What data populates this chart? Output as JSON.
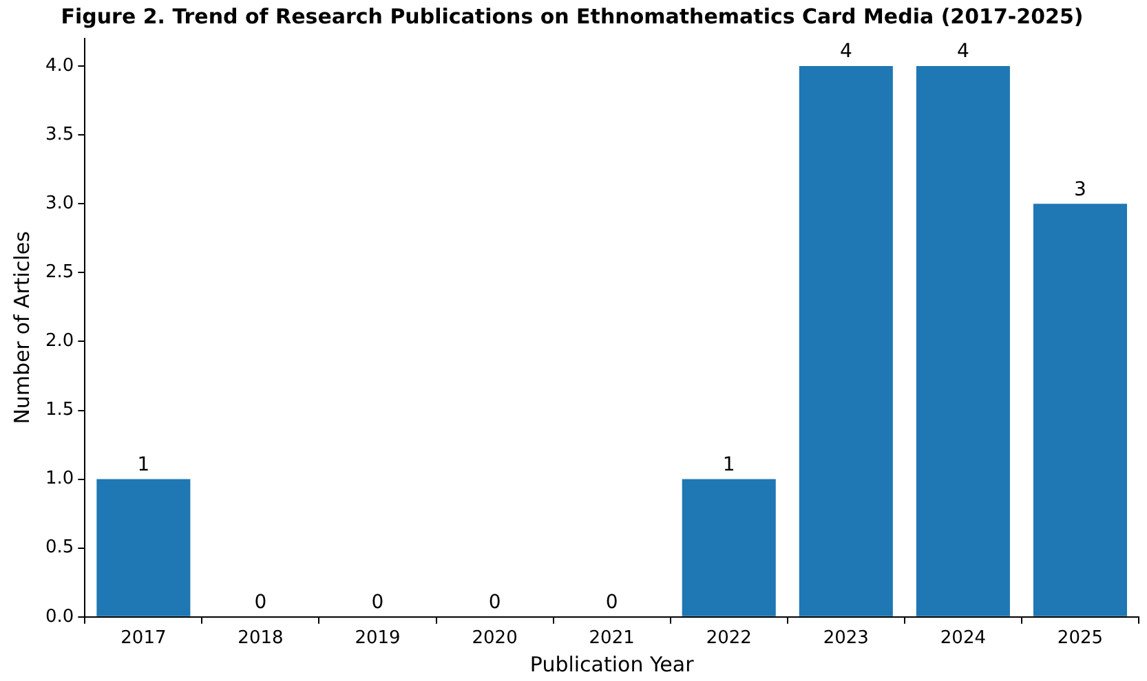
{
  "chart_data": {
    "type": "bar",
    "title": "Figure 2. Trend of Research Publications on Ethnomathematics Card Media (2017-2025)",
    "xlabel": "Publication Year",
    "ylabel": "Number of Articles",
    "categories": [
      "2017",
      "2018",
      "2019",
      "2020",
      "2021",
      "2022",
      "2023",
      "2024",
      "2025"
    ],
    "values": [
      1,
      0,
      0,
      0,
      0,
      1,
      4,
      4,
      3
    ],
    "color": "#1f77b4",
    "ylim": [
      0,
      4.2
    ],
    "yticks": [
      {
        "value": 0,
        "label": "0.0"
      },
      0.5,
      {
        "value": 1,
        "label": "1.0"
      },
      1.5,
      {
        "value": 2,
        "label": "2.0"
      },
      2.5,
      {
        "value": 3,
        "label": "3.0"
      },
      3.5,
      {
        "value": 4,
        "label": "4.0"
      }
    ],
    "grid": false,
    "data_labels": true
  }
}
